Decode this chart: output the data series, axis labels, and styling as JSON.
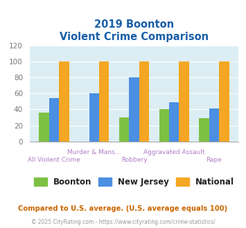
{
  "title_line1": "2019 Boonton",
  "title_line2": "Violent Crime Comparison",
  "categories": [
    "All Violent Crime",
    "Murder & Mans...",
    "Robbery",
    "Aggravated Assault",
    "Rape"
  ],
  "boonton": [
    36,
    0,
    30,
    40,
    29
  ],
  "new_jersey": [
    54,
    60,
    80,
    49,
    41
  ],
  "national": [
    100,
    100,
    100,
    100,
    100
  ],
  "colors": {
    "boonton": "#7dc142",
    "new_jersey": "#4b8fe2",
    "national": "#f5a623"
  },
  "ylim": [
    0,
    120
  ],
  "yticks": [
    0,
    20,
    40,
    60,
    80,
    100,
    120
  ],
  "background_color": "#dceef4",
  "legend_labels": [
    "Boonton",
    "New Jersey",
    "National"
  ],
  "footnote1": "Compared to U.S. average. (U.S. average equals 100)",
  "footnote2": "© 2025 CityRating.com - https://www.cityrating.com/crime-statistics/",
  "title_color": "#1a5fa8",
  "footnote1_color": "#cc6600",
  "footnote2_color": "#999999",
  "label_color": "#b07cc6"
}
